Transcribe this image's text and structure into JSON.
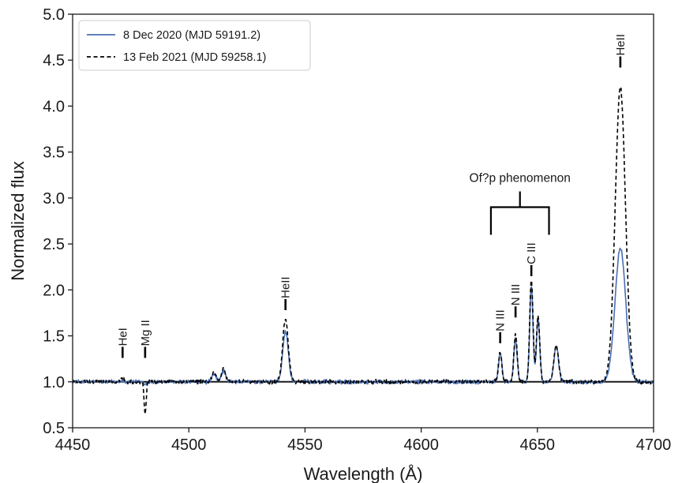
{
  "chart_data": {
    "type": "line",
    "xlabel": "Wavelength (Å)",
    "ylabel": "Normalized  flux",
    "xlim": [
      4450,
      4700
    ],
    "ylim": [
      0.5,
      5.0
    ],
    "xticks": [
      4450,
      4500,
      4550,
      4600,
      4650,
      4700
    ],
    "yticks": [
      0.5,
      1.0,
      1.5,
      2.0,
      2.5,
      3.0,
      3.5,
      4.0,
      4.5,
      5.0
    ],
    "xtick_labels": [
      "4450",
      "4500",
      "4550",
      "4600",
      "4650",
      "4700"
    ],
    "ytick_labels": [
      "0.5",
      "1.0",
      "1.5",
      "2.0",
      "2.5",
      "3.0",
      "3.5",
      "4.0",
      "4.5",
      "5.0"
    ],
    "grid": false,
    "legend_position": "top-left",
    "reference_line_y": 1.0,
    "colors": {
      "series1": "#4a6fb3",
      "series2": "#000000",
      "axes": "#1a1a1a"
    },
    "series": [
      {
        "name": "8 Dec 2020 (MJD  59191.2)",
        "style": "solid",
        "continuum": 1.0,
        "features": [
          {
            "center": 4471.5,
            "amp": 0.02,
            "sigma": 0.8
          },
          {
            "center": 4481.2,
            "amp": -0.03,
            "sigma": 0.6
          },
          {
            "center": 4510.9,
            "amp": 0.08,
            "sigma": 0.9
          },
          {
            "center": 4514.9,
            "amp": 0.12,
            "sigma": 0.9
          },
          {
            "center": 4541.6,
            "amp": 0.55,
            "sigma": 1.2
          },
          {
            "center": 4634.0,
            "amp": 0.32,
            "sigma": 0.7
          },
          {
            "center": 4640.6,
            "amp": 0.48,
            "sigma": 0.7
          },
          {
            "center": 4647.4,
            "amp": 1.05,
            "sigma": 0.7
          },
          {
            "center": 4650.3,
            "amp": 0.68,
            "sigma": 0.7
          },
          {
            "center": 4658.1,
            "amp": 0.38,
            "sigma": 1.0
          },
          {
            "center": 4685.7,
            "amp": 1.45,
            "sigma": 2.3
          }
        ]
      },
      {
        "name": "13 Feb 2021 (MJD  59258.1)",
        "style": "dashed",
        "continuum": 1.0,
        "features": [
          {
            "center": 4471.5,
            "amp": 0.05,
            "sigma": 0.8
          },
          {
            "center": 4481.2,
            "amp": -0.34,
            "sigma": 0.45
          },
          {
            "center": 4510.9,
            "amp": 0.1,
            "sigma": 0.9
          },
          {
            "center": 4514.9,
            "amp": 0.14,
            "sigma": 0.9
          },
          {
            "center": 4541.6,
            "amp": 0.68,
            "sigma": 1.2
          },
          {
            "center": 4634.0,
            "amp": 0.33,
            "sigma": 0.7
          },
          {
            "center": 4640.6,
            "amp": 0.52,
            "sigma": 0.7
          },
          {
            "center": 4647.4,
            "amp": 1.12,
            "sigma": 0.7
          },
          {
            "center": 4650.3,
            "amp": 0.72,
            "sigma": 0.7
          },
          {
            "center": 4658.1,
            "amp": 0.39,
            "sigma": 1.0
          },
          {
            "center": 4685.7,
            "amp": 3.2,
            "sigma": 2.2
          }
        ]
      }
    ],
    "line_ids": [
      {
        "label": "HeI",
        "x": 4471.5,
        "y": 1.26
      },
      {
        "label": "Mg II",
        "x": 4481.2,
        "y": 1.26
      },
      {
        "label": "HeII",
        "x": 4541.6,
        "y": 1.78
      },
      {
        "label": "N III",
        "x": 4634.0,
        "y": 1.42
      },
      {
        "label": "N III",
        "x": 4640.6,
        "y": 1.7
      },
      {
        "label": "C III",
        "x": 4647.4,
        "y": 2.15
      },
      {
        "label": "HeII",
        "x": 4685.7,
        "y": 4.42
      }
    ],
    "annotation": {
      "label": "Of?p phenomenon",
      "x_start": 4630,
      "x_end": 4655,
      "y": 2.6
    }
  }
}
